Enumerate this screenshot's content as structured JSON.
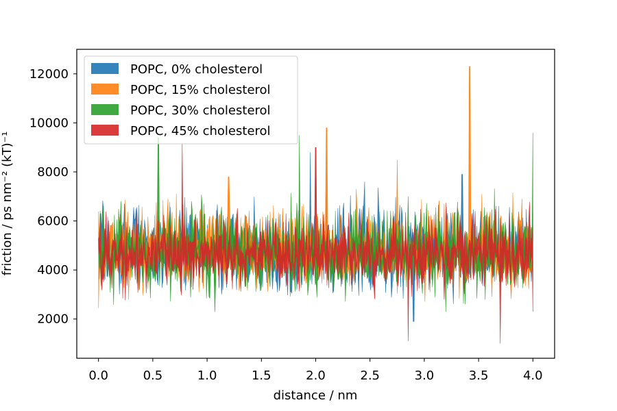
{
  "chart_data": {
    "type": "area",
    "xlabel": "distance / nm",
    "ylabel": "friction / ps nm⁻² (kT)⁻¹",
    "xlim": [
      -0.2,
      4.2
    ],
    "ylim": [
      400,
      13000
    ],
    "xticks": [
      0.0,
      0.5,
      1.0,
      1.5,
      2.0,
      2.5,
      3.0,
      3.5,
      4.0
    ],
    "xtick_labels": [
      "0.0",
      "0.5",
      "1.0",
      "1.5",
      "2.0",
      "2.5",
      "3.0",
      "3.5",
      "4.0"
    ],
    "yticks": [
      2000,
      4000,
      6000,
      8000,
      10000,
      12000
    ],
    "ytick_labels": [
      "2000",
      "4000",
      "6000",
      "8000",
      "10000",
      "12000"
    ],
    "grid": false,
    "legend_position": "top-left",
    "series": [
      {
        "name": "POPC, 0% cholesterol",
        "color": "#1f77b4",
        "mean": 4700,
        "spread": 1300,
        "peaks": [
          [
            0.02,
            6300
          ],
          [
            1.95,
            8800
          ],
          [
            2.45,
            7600
          ],
          [
            3.35,
            7900
          ],
          [
            2.9,
            1900
          ]
        ]
      },
      {
        "name": "POPC, 15% cholesterol",
        "color": "#ff7f0e",
        "mean": 4700,
        "spread": 1300,
        "peaks": [
          [
            0.0,
            2450
          ],
          [
            2.75,
            8500
          ],
          [
            3.42,
            12300
          ],
          [
            1.2,
            7800
          ],
          [
            2.1,
            9800
          ]
        ]
      },
      {
        "name": "POPC, 30% cholesterol",
        "color": "#2ca02c",
        "mean": 4600,
        "spread": 1300,
        "peaks": [
          [
            4.0,
            9600
          ],
          [
            0.55,
            9400
          ],
          [
            1.85,
            9500
          ],
          [
            2.85,
            7000
          ],
          [
            3.2,
            2300
          ]
        ]
      },
      {
        "name": "POPC, 45% cholesterol",
        "color": "#d62728",
        "mean": 4600,
        "spread": 1100,
        "peaks": [
          [
            0.77,
            9200
          ],
          [
            2.0,
            9000
          ],
          [
            2.85,
            1100
          ],
          [
            3.7,
            1000
          ],
          [
            4.0,
            2300
          ]
        ]
      }
    ]
  }
}
